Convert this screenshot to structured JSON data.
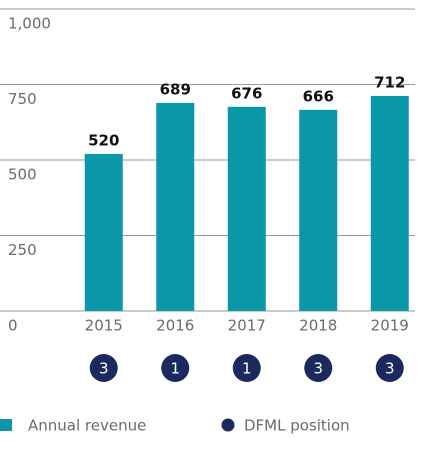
{
  "chart_data": {
    "type": "bar",
    "categories": [
      "2015",
      "2016",
      "2017",
      "2018",
      "2019"
    ],
    "series": [
      {
        "name": "Annual revenue",
        "color": "#0a97a8",
        "values": [
          520,
          689,
          676,
          666,
          712
        ]
      },
      {
        "name": "DFML position",
        "color": "#1b2a5e",
        "values": [
          3,
          1,
          1,
          3,
          3
        ]
      }
    ],
    "ylim": [
      0,
      1000
    ],
    "yticks": [
      0,
      250,
      500,
      750,
      {
        "value": 1000,
        "label": "1,000"
      }
    ],
    "grid": true,
    "legend": "bottom"
  }
}
